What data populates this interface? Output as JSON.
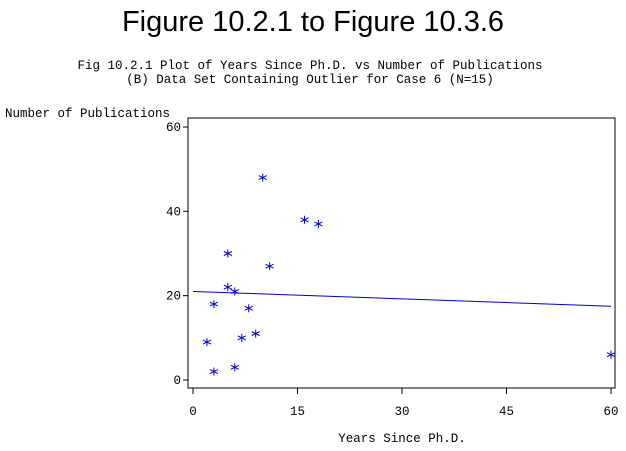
{
  "figure_title": "Figure 10.2.1 to Figure 10.3.6",
  "subtitle_line1": "Fig 10.2.1 Plot of Years Since Ph.D. vs Number of Publications",
  "subtitle_line2": "(B) Data Set Containing Outlier for Case 6 (N=15)",
  "colors": {
    "data": "#0000c8",
    "axes": "#000000",
    "frame": "#000000"
  },
  "chart_data": {
    "type": "scatter",
    "xlabel": "Years Since Ph.D.",
    "ylabel": "Number of Publications",
    "xlim": [
      0,
      60
    ],
    "ylim": [
      0,
      60
    ],
    "xticks": [
      0,
      15,
      30,
      45,
      60
    ],
    "yticks": [
      0,
      20,
      40,
      60
    ],
    "grid": false,
    "marker": "star",
    "points": [
      {
        "x": 2,
        "y": 9
      },
      {
        "x": 3,
        "y": 2
      },
      {
        "x": 3,
        "y": 18
      },
      {
        "x": 5,
        "y": 30
      },
      {
        "x": 5,
        "y": 22
      },
      {
        "x": 6,
        "y": 21
      },
      {
        "x": 6,
        "y": 3
      },
      {
        "x": 7,
        "y": 10
      },
      {
        "x": 8,
        "y": 17
      },
      {
        "x": 9,
        "y": 11
      },
      {
        "x": 10,
        "y": 48
      },
      {
        "x": 11,
        "y": 27
      },
      {
        "x": 16,
        "y": 38
      },
      {
        "x": 18,
        "y": 37
      },
      {
        "x": 60,
        "y": 6
      }
    ],
    "fit_line": {
      "x": [
        0,
        60
      ],
      "y": [
        21,
        17.5
      ]
    }
  }
}
